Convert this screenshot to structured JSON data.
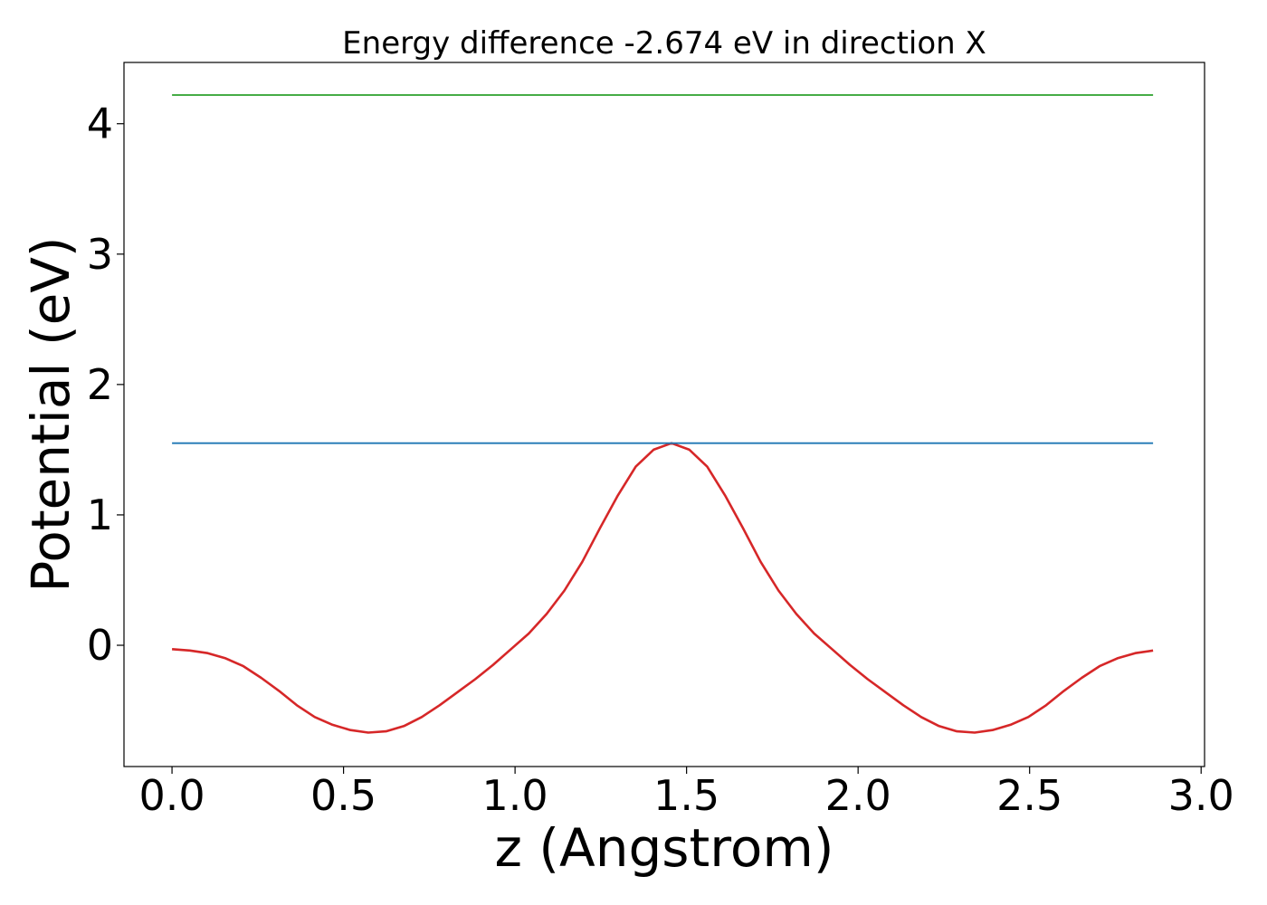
{
  "chart_data": {
    "type": "line",
    "title": "Energy difference -2.674 eV in direction X",
    "xlabel": "z (Angstrom)",
    "ylabel": "Potential (eV)",
    "xlim": [
      -0.14,
      3.01
    ],
    "ylim": [
      -0.93,
      4.47
    ],
    "x_ticks": [
      0.0,
      0.5,
      1.0,
      1.5,
      2.0,
      2.5,
      3.0
    ],
    "x_tick_labels": [
      "0.0",
      "0.5",
      "1.0",
      "1.5",
      "2.0",
      "2.5",
      "3.0"
    ],
    "y_ticks": [
      0,
      1,
      2,
      3,
      4
    ],
    "y_tick_labels": [
      "0",
      "1",
      "2",
      "3",
      "4"
    ],
    "grid": false,
    "series": [
      {
        "color": "#d62728",
        "x": [
          0.0,
          0.052,
          0.104,
          0.156,
          0.208,
          0.26,
          0.312,
          0.364,
          0.416,
          0.468,
          0.52,
          0.572,
          0.624,
          0.676,
          0.728,
          0.78,
          0.832,
          0.884,
          0.936,
          0.988,
          1.04,
          1.092,
          1.144,
          1.196,
          1.248,
          1.3,
          1.352,
          1.404,
          1.456,
          1.508,
          1.56,
          1.612,
          1.664,
          1.716,
          1.768,
          1.82,
          1.872,
          1.924,
          1.976,
          2.028,
          2.08,
          2.132,
          2.184,
          2.236,
          2.288,
          2.34,
          2.392,
          2.444,
          2.496,
          2.548,
          2.6,
          2.652,
          2.704,
          2.756,
          2.808,
          2.86
        ],
        "y": [
          -0.03,
          -0.04,
          -0.06,
          -0.1,
          -0.16,
          -0.25,
          -0.35,
          -0.46,
          -0.55,
          -0.61,
          -0.65,
          -0.67,
          -0.66,
          -0.62,
          -0.55,
          -0.46,
          -0.36,
          -0.26,
          -0.15,
          -0.03,
          0.09,
          0.24,
          0.42,
          0.64,
          0.9,
          1.15,
          1.37,
          1.5,
          1.55,
          1.5,
          1.37,
          1.15,
          0.9,
          0.64,
          0.42,
          0.24,
          0.09,
          -0.03,
          -0.15,
          -0.26,
          -0.36,
          -0.46,
          -0.55,
          -0.62,
          -0.66,
          -0.67,
          -0.65,
          -0.61,
          -0.55,
          -0.46,
          -0.35,
          -0.25,
          -0.16,
          -0.1,
          -0.06,
          -0.04
        ]
      },
      {
        "color": "#1f77b4",
        "x": [
          0.0,
          2.86
        ],
        "y": [
          1.55,
          1.55
        ]
      },
      {
        "color": "#2ca02c",
        "x": [
          0.0,
          2.86
        ],
        "y": [
          4.22,
          4.22
        ]
      }
    ]
  }
}
